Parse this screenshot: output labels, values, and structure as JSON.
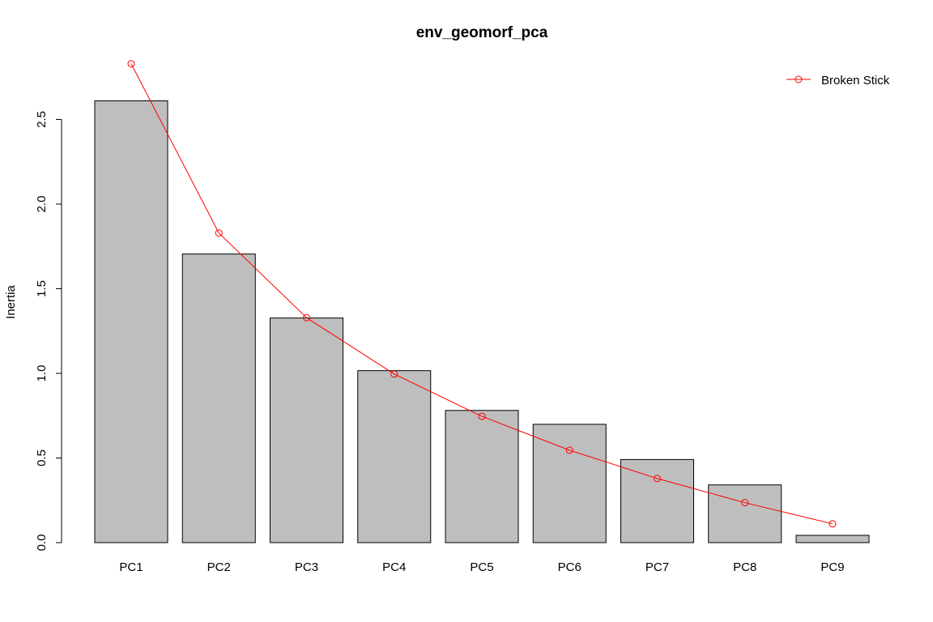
{
  "chart_data": {
    "type": "bar",
    "title": "env_geomorf_pca",
    "ylabel": "Inertia",
    "xlabel": "",
    "categories": [
      "PC1",
      "PC2",
      "PC3",
      "PC4",
      "PC5",
      "PC6",
      "PC7",
      "PC8",
      "PC9"
    ],
    "series": [
      {
        "type": "bar",
        "values": [
          2.61,
          1.705,
          1.327,
          1.016,
          0.781,
          0.699,
          0.491,
          0.341,
          0.043
        ]
      },
      {
        "name": "Broken Stick",
        "type": "line",
        "values": [
          2.829,
          1.829,
          1.329,
          0.996,
          0.746,
          0.546,
          0.379,
          0.236,
          0.111
        ]
      }
    ],
    "yticks": [
      "0.0",
      "0.5",
      "1.0",
      "1.5",
      "2.0",
      "2.5"
    ],
    "ytick_values": [
      0,
      0.5,
      1.0,
      1.5,
      2.0,
      2.5
    ],
    "ylim": [
      0,
      2.72
    ],
    "legend_position": "top-right",
    "colors": {
      "bar_fill": "#bebebe",
      "bar_stroke": "#000000",
      "line": "#ff0000"
    }
  }
}
